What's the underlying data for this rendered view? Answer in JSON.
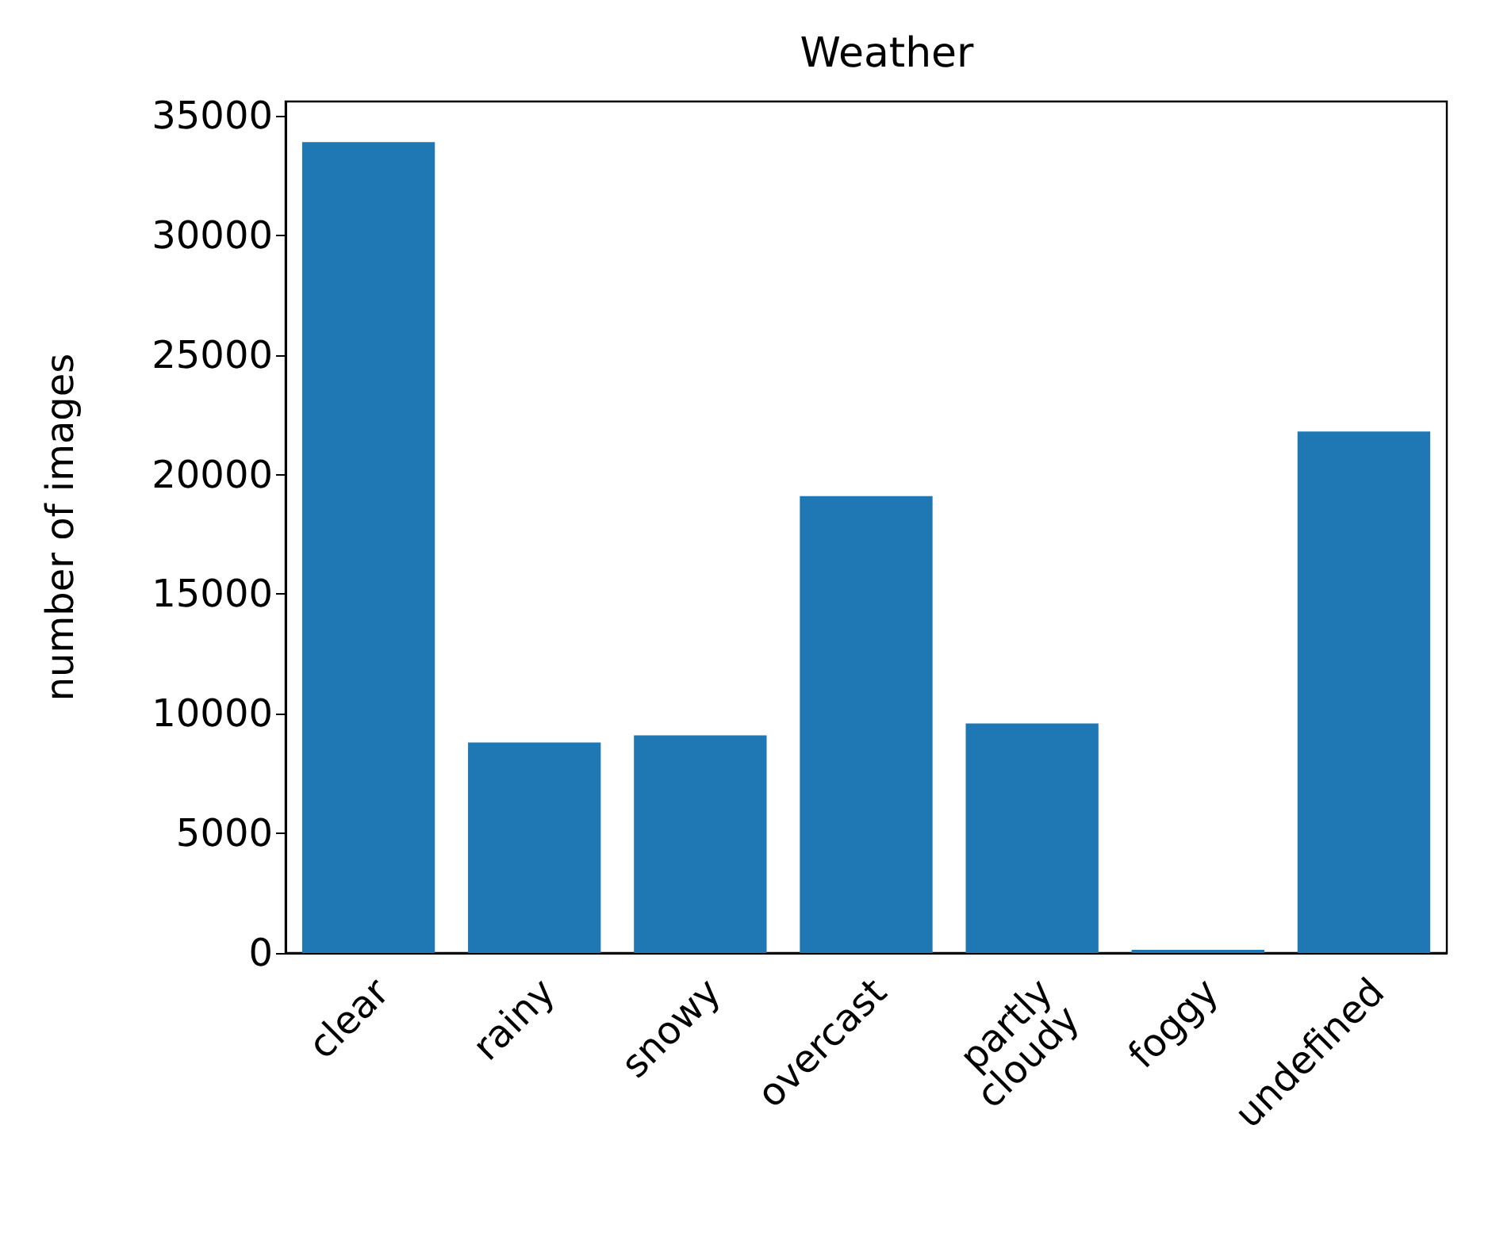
{
  "chart_data": {
    "type": "bar",
    "title": "Weather",
    "ylabel": "number of images",
    "categories": [
      "clear",
      "rainy",
      "snowy",
      "overcast",
      "partly\ncloudy",
      "foggy",
      "undefined"
    ],
    "values": [
      33900,
      8800,
      9100,
      19100,
      9600,
      130,
      21800
    ],
    "color": "#1f77b4",
    "ylim": [
      0,
      35600
    ],
    "yticks": [
      0,
      5000,
      10000,
      15000,
      20000,
      25000,
      30000,
      35000
    ],
    "grid": false
  }
}
